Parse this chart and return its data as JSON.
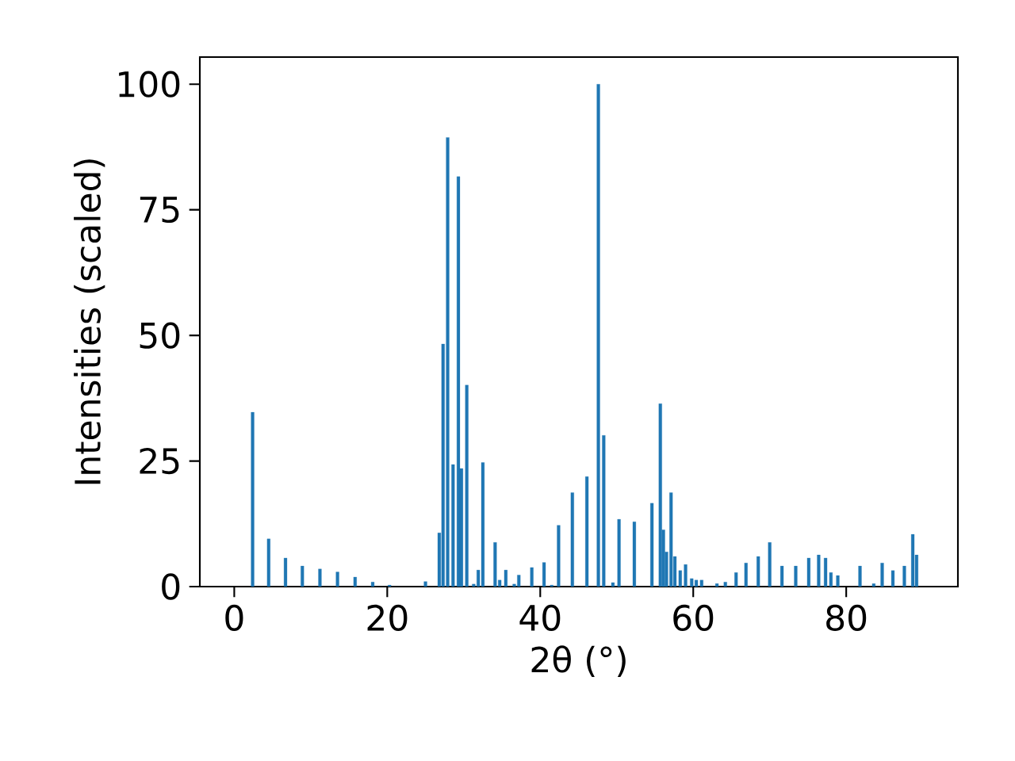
{
  "chart_data": {
    "type": "bar",
    "xlabel": "2θ (°)",
    "ylabel": "Intensities (scaled)",
    "series": [
      {
        "color": "#1f77b4",
        "x": [
          2.4,
          4.5,
          6.7,
          8.9,
          11.2,
          13.5,
          15.8,
          18.1,
          20.3,
          25.0,
          26.8,
          27.3,
          27.9,
          28.6,
          29.3,
          29.7,
          30.4,
          31.3,
          31.9,
          32.5,
          34.1,
          34.7,
          35.5,
          36.6,
          37.2,
          38.9,
          40.5,
          41.5,
          42.4,
          44.2,
          46.1,
          47.6,
          48.3,
          49.5,
          50.3,
          52.3,
          54.6,
          55.7,
          56.1,
          56.5,
          57.1,
          57.6,
          58.3,
          59.0,
          59.8,
          60.4,
          61.1,
          63.1,
          64.2,
          65.6,
          66.9,
          68.5,
          70.0,
          71.6,
          73.4,
          75.1,
          76.4,
          77.3,
          78.0,
          78.9,
          81.8,
          83.6,
          84.7,
          86.1,
          87.6,
          88.7,
          89.2
        ],
        "values": [
          34.7,
          9.5,
          5.7,
          4.1,
          3.5,
          2.9,
          1.9,
          0.9,
          0.3,
          1.0,
          10.7,
          48.3,
          89.4,
          24.3,
          81.6,
          23.5,
          40.1,
          0.5,
          3.3,
          24.7,
          8.8,
          1.3,
          3.3,
          0.5,
          2.3,
          3.8,
          4.8,
          0.3,
          12.2,
          18.7,
          21.9,
          100,
          30.1,
          0.8,
          13.4,
          12.9,
          16.6,
          36.4,
          11.3,
          6.9,
          18.7,
          6.0,
          3.2,
          4.4,
          1.6,
          1.3,
          1.3,
          0.6,
          0.9,
          2.8,
          4.7,
          6.0,
          8.8,
          4.1,
          4.1,
          5.7,
          6.3,
          5.7,
          2.8,
          2.2,
          4.1,
          0.6,
          4.7,
          3.2,
          4.1,
          10.4,
          6.3
        ]
      }
    ],
    "xlim": [
      -4.5,
      94.6
    ],
    "ylim": [
      0,
      105.4
    ],
    "xticks": [
      0,
      20,
      40,
      60,
      80
    ],
    "yticks": [
      0,
      25,
      50,
      75,
      100
    ]
  }
}
